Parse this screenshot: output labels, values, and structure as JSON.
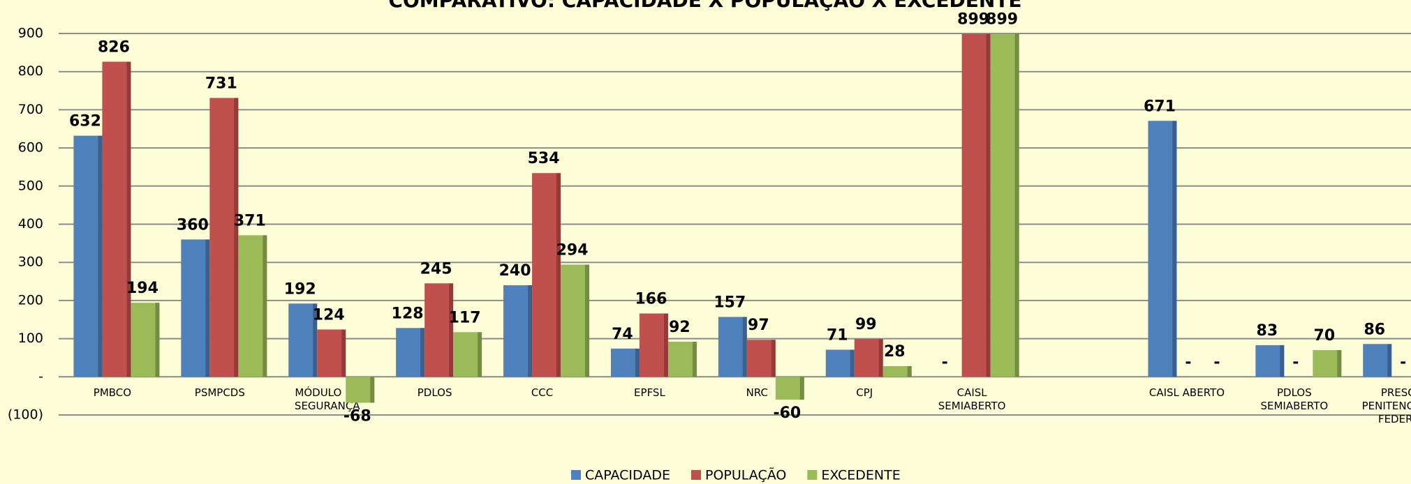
{
  "chart_data": {
    "type": "bar",
    "title": "COMPARATIVO: CAPACIDADE X POPULAÇÃO X EXCEDENTE",
    "categories": [
      "PMBCO",
      "PSMPCDS",
      "MÓDULO DE SEGURANÇA",
      "PDLOS",
      "CCC",
      "EPFSL",
      "NRC",
      "CPJ",
      "CAISL SEMIABERTO",
      null,
      "CAISL ABERTO",
      "PDLOS SEMIABERTO",
      "PRESOS PENITENCIÁRIA FEDERAL"
    ],
    "series": [
      {
        "name": "CAPACIDADE",
        "color": "#4f81bd",
        "values": [
          632,
          360,
          192,
          128,
          240,
          74,
          157,
          71,
          0,
          null,
          671,
          83,
          86
        ],
        "value_labels": [
          "632",
          "360",
          "192",
          "128",
          "240",
          "74",
          "157",
          "71",
          "-",
          null,
          "671",
          "83",
          "86"
        ]
      },
      {
        "name": "POPULAÇÃO",
        "color": "#c0504d",
        "values": [
          826,
          731,
          124,
          245,
          534,
          166,
          97,
          99,
          899,
          null,
          0,
          0,
          0
        ],
        "value_labels": [
          "826",
          "731",
          "124",
          "245",
          "534",
          "166",
          "97",
          "99",
          "899",
          null,
          "-",
          "-",
          "-"
        ]
      },
      {
        "name": "EXCEDENTE",
        "color": "#9bbb59",
        "values": [
          194,
          371,
          -68,
          117,
          294,
          92,
          -60,
          28,
          899,
          null,
          0,
          70,
          null
        ],
        "value_labels": [
          "194",
          "371",
          "-68",
          "117",
          "294",
          "92",
          "-60",
          "28",
          "899",
          null,
          "-",
          "70",
          null
        ]
      }
    ],
    "ylim": [
      -100,
      900
    ],
    "yticks": [
      {
        "value": -100,
        "label": "(100)"
      },
      {
        "value": 0,
        "label": "-"
      },
      100,
      200,
      300,
      400,
      500,
      600,
      700,
      800,
      900
    ],
    "grid": true,
    "legend": "bottom"
  }
}
